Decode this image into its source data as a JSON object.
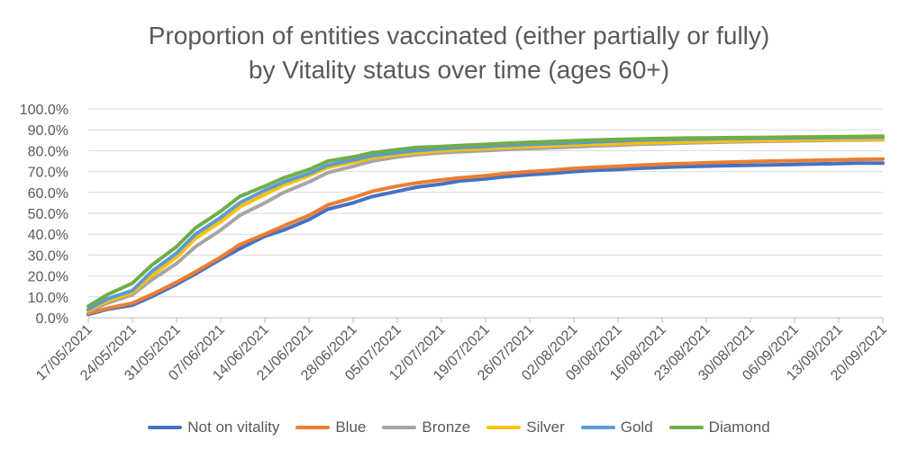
{
  "colors": {
    "not_on_vitality": "#4472C4",
    "blue": "#ED7D31",
    "bronze": "#A5A5A5",
    "silver": "#FFC000",
    "gold": "#5B9BD5",
    "diamond": "#70AD47",
    "grid": "#D9D9D9",
    "text": "#595959"
  },
  "chart_data": {
    "type": "line",
    "title_line1": "Proportion of entities vaccinated (either partially or fully)",
    "title_line2": "by Vitality status over time (ages 60+)",
    "xlabel": "",
    "ylabel": "",
    "ylim": [
      0,
      100
    ],
    "y_ticks": [
      "0.0%",
      "10.0%",
      "20.0%",
      "30.0%",
      "40.0%",
      "50.0%",
      "60.0%",
      "70.0%",
      "80.0%",
      "90.0%",
      "100.0%"
    ],
    "x_tick_labels": [
      "17/05/2021",
      "24/05/2021",
      "31/05/2021",
      "07/06/2021",
      "14/06/2021",
      "21/06/2021",
      "28/06/2021",
      "05/07/2021",
      "12/07/2021",
      "19/07/2021",
      "26/07/2021",
      "02/08/2021",
      "09/08/2021",
      "16/08/2021",
      "23/08/2021",
      "30/08/2021",
      "06/09/2021",
      "13/09/2021",
      "20/09/2021"
    ],
    "grid": true,
    "legend_position": "bottom",
    "x": [
      "17/05/2021",
      "20/05/2021",
      "24/05/2021",
      "27/05/2021",
      "31/05/2021",
      "03/06/2021",
      "07/06/2021",
      "10/06/2021",
      "14/06/2021",
      "17/06/2021",
      "21/06/2021",
      "24/06/2021",
      "28/06/2021",
      "01/07/2021",
      "05/07/2021",
      "08/07/2021",
      "12/07/2021",
      "15/07/2021",
      "19/07/2021",
      "22/07/2021",
      "26/07/2021",
      "29/07/2021",
      "02/08/2021",
      "05/08/2021",
      "09/08/2021",
      "12/08/2021",
      "16/08/2021",
      "19/08/2021",
      "23/08/2021",
      "26/08/2021",
      "30/08/2021",
      "02/09/2021",
      "06/09/2021",
      "09/09/2021",
      "13/09/2021",
      "16/09/2021",
      "20/09/2021"
    ],
    "series": [
      {
        "name": "Not on vitality",
        "color_key": "not_on_vitality",
        "values": [
          1.5,
          4,
          6,
          10,
          16,
          21,
          28,
          33,
          39,
          42,
          47,
          52,
          55,
          58,
          60.5,
          62.5,
          64,
          65.5,
          66.5,
          67.5,
          68.5,
          69,
          70,
          70.5,
          71,
          71.5,
          72,
          72.3,
          72.6,
          72.8,
          73,
          73.2,
          73.4,
          73.6,
          73.8,
          74,
          74
        ]
      },
      {
        "name": "Blue",
        "color_key": "blue",
        "values": [
          2,
          4.5,
          7,
          11,
          17,
          22,
          29,
          35,
          40,
          44,
          49,
          54,
          57.5,
          60.5,
          63,
          64.5,
          66,
          67,
          68,
          69,
          70,
          70.5,
          71.5,
          72,
          72.5,
          73,
          73.5,
          73.8,
          74.2,
          74.5,
          74.8,
          75,
          75.2,
          75.4,
          75.6,
          75.8,
          76
        ]
      },
      {
        "name": "Bronze",
        "color_key": "bronze",
        "values": [
          3,
          7,
          11,
          18,
          26,
          34,
          42,
          49,
          55,
          60,
          65,
          69.5,
          72.5,
          75,
          77,
          78,
          79,
          79.5,
          80,
          80.5,
          81,
          81.3,
          81.8,
          82.2,
          82.6,
          83,
          83.3,
          83.6,
          83.9,
          84.1,
          84.3,
          84.5,
          84.7,
          84.8,
          85,
          85.1,
          85.2
        ]
      },
      {
        "name": "Silver",
        "color_key": "silver",
        "values": [
          3.5,
          8,
          12,
          20,
          29,
          38,
          46,
          53,
          59,
          63.5,
          68,
          72,
          74.5,
          76.5,
          78,
          79,
          80,
          80.5,
          81,
          81.5,
          82,
          82.3,
          82.8,
          83.1,
          83.4,
          83.7,
          84,
          84.2,
          84.4,
          84.6,
          84.8,
          84.9,
          85.1,
          85.2,
          85.3,
          85.4,
          85.5
        ]
      },
      {
        "name": "Gold",
        "color_key": "gold",
        "values": [
          4,
          9,
          13,
          22,
          31,
          40,
          48,
          55,
          61,
          65,
          69,
          73,
          75.5,
          77.5,
          79,
          80,
          81,
          81.5,
          82,
          82.5,
          83,
          83.3,
          83.8,
          84.2,
          84.6,
          85,
          85.2,
          85.4,
          85.6,
          85.8,
          85.9,
          86,
          86.1,
          86.2,
          86.3,
          86.4,
          86.5
        ]
      },
      {
        "name": "Diamond",
        "color_key": "diamond",
        "values": [
          5.5,
          11,
          16.5,
          25,
          34,
          43,
          51,
          58,
          63,
          67,
          71,
          75,
          77,
          79,
          80.5,
          81.5,
          82,
          82.5,
          83,
          83.5,
          84,
          84.3,
          84.8,
          85.1,
          85.4,
          85.6,
          85.8,
          86,
          86.1,
          86.2,
          86.3,
          86.4,
          86.5,
          86.6,
          86.7,
          86.8,
          87
        ]
      }
    ]
  }
}
